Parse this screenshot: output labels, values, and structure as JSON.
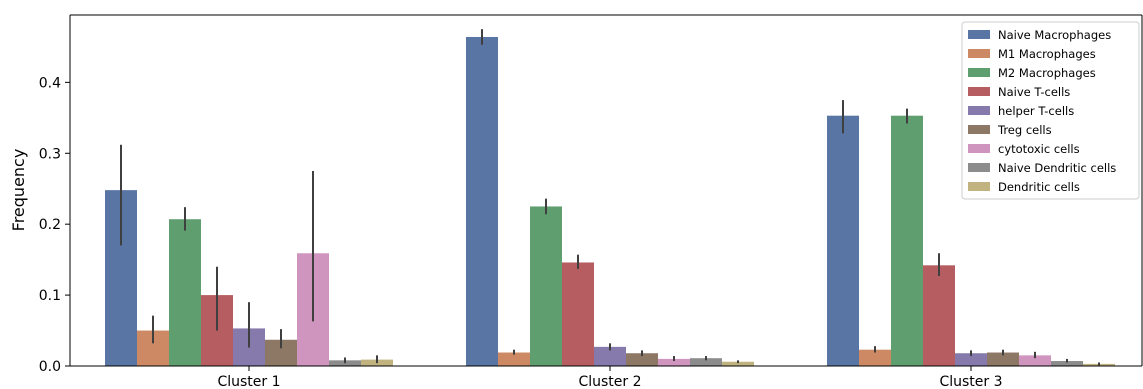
{
  "chart_data": {
    "type": "bar",
    "ylabel": "Frequency",
    "xlabel": "",
    "ylim": [
      0,
      0.495
    ],
    "yticks": [
      0.0,
      0.1,
      0.2,
      0.3,
      0.4
    ],
    "ytick_labels": [
      "0.0",
      "0.1",
      "0.2",
      "0.3",
      "0.4"
    ],
    "categories": [
      "Cluster 1",
      "Cluster 2",
      "Cluster 3"
    ],
    "legend_position": "top-right",
    "grid": false,
    "series": [
      {
        "name": "Naive Macrophages",
        "color": "#5975a4",
        "values": [
          0.248,
          0.464,
          0.353
        ],
        "err_low": [
          0.17,
          0.453,
          0.328
        ],
        "err_high": [
          0.312,
          0.475,
          0.375
        ]
      },
      {
        "name": "M1 Macrophages",
        "color": "#cc8963",
        "values": [
          0.05,
          0.019,
          0.023
        ],
        "err_low": [
          0.032,
          0.016,
          0.019
        ],
        "err_high": [
          0.071,
          0.023,
          0.028
        ]
      },
      {
        "name": "M2 Macrophages",
        "color": "#5f9e6e",
        "values": [
          0.207,
          0.225,
          0.353
        ],
        "err_low": [
          0.191,
          0.214,
          0.342
        ],
        "err_high": [
          0.224,
          0.236,
          0.363
        ]
      },
      {
        "name": "Naive T-cells",
        "color": "#b55d60",
        "values": [
          0.1,
          0.146,
          0.142
        ],
        "err_low": [
          0.05,
          0.137,
          0.127
        ],
        "err_high": [
          0.14,
          0.157,
          0.159
        ]
      },
      {
        "name": "helper T-cells",
        "color": "#857aab",
        "values": [
          0.053,
          0.027,
          0.018
        ],
        "err_low": [
          0.026,
          0.022,
          0.014
        ],
        "err_high": [
          0.09,
          0.032,
          0.022
        ]
      },
      {
        "name": "Treg cells",
        "color": "#8d7866",
        "values": [
          0.037,
          0.018,
          0.019
        ],
        "err_low": [
          0.025,
          0.014,
          0.015
        ],
        "err_high": [
          0.052,
          0.022,
          0.023
        ]
      },
      {
        "name": "cytotoxic cells",
        "color": "#d095bf",
        "values": [
          0.159,
          0.01,
          0.015
        ],
        "err_low": [
          0.063,
          0.007,
          0.011
        ],
        "err_high": [
          0.275,
          0.014,
          0.02
        ]
      },
      {
        "name": "Naive Dendritic cells",
        "color": "#8c8c8c",
        "values": [
          0.008,
          0.011,
          0.007
        ],
        "err_low": [
          0.004,
          0.008,
          0.005
        ],
        "err_high": [
          0.012,
          0.014,
          0.01
        ]
      },
      {
        "name": "Dendritic cells",
        "color": "#c1b37f",
        "values": [
          0.009,
          0.006,
          0.003
        ],
        "err_low": [
          0.004,
          0.004,
          0.001
        ],
        "err_high": [
          0.015,
          0.008,
          0.005
        ]
      }
    ]
  }
}
